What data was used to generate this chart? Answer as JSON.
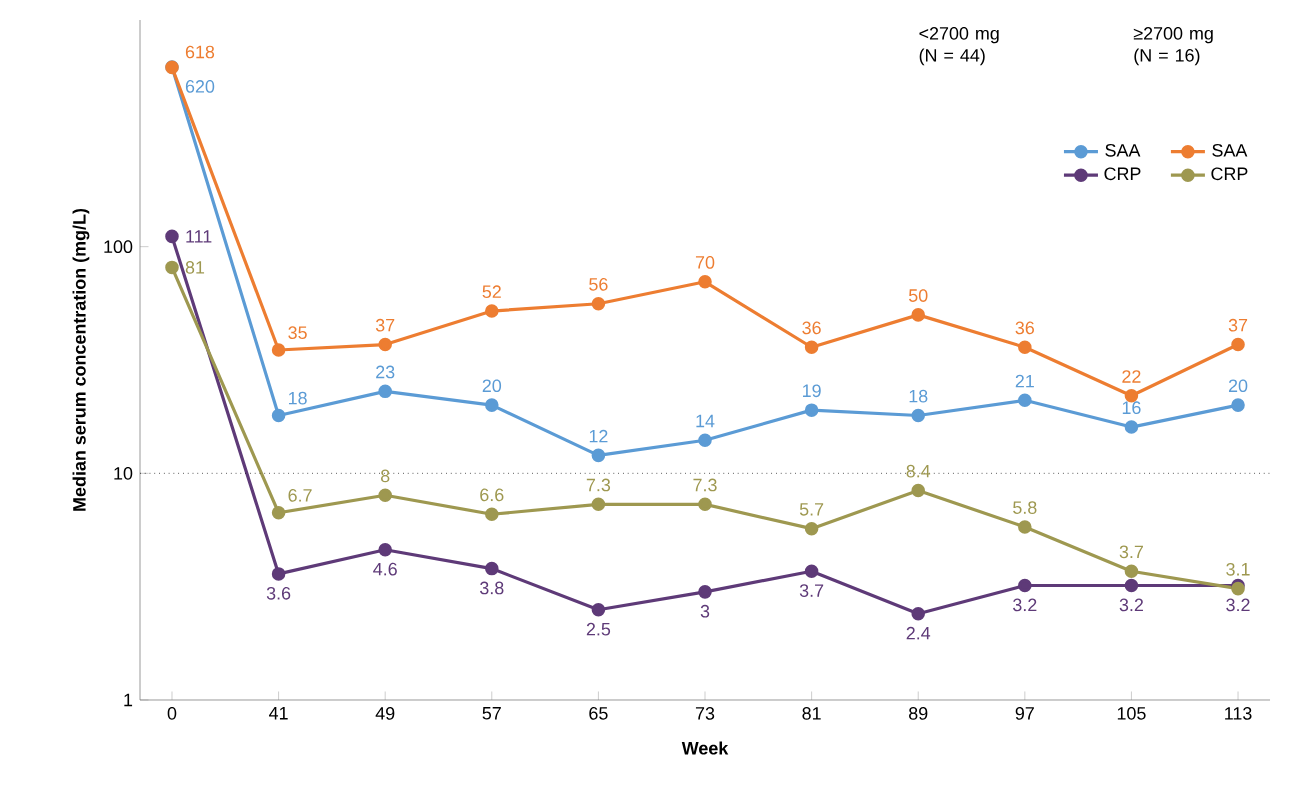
{
  "chart_data": {
    "type": "line",
    "xlabel": "Week",
    "ylabel": "Median serum concentration (mg/L)",
    "categories": [
      "0",
      "41",
      "49",
      "57",
      "65",
      "73",
      "81",
      "89",
      "97",
      "105",
      "113"
    ],
    "series": [
      {
        "name": "SAA",
        "color": "#5b9bd5",
        "values": [
          620,
          18,
          23,
          20,
          12,
          14,
          19,
          18,
          21,
          16,
          20
        ]
      },
      {
        "name": "SAA",
        "color": "#ed7d31",
        "values": [
          618,
          35,
          37,
          52,
          56,
          70,
          36,
          50,
          36,
          22,
          37
        ]
      },
      {
        "name": "CRP",
        "color": "#5e3a78",
        "values": [
          111,
          3.6,
          4.6,
          3.8,
          2.5,
          3,
          3.7,
          2.4,
          3.2,
          3.2,
          3.2
        ]
      },
      {
        "name": "CRP",
        "color": "#9e9850",
        "values": [
          81,
          6.7,
          8,
          6.6,
          7.3,
          7.3,
          5.7,
          8.4,
          5.8,
          3.7,
          3.1
        ]
      }
    ],
    "annotations": [
      "<2700 mg (N = 44)",
      "≥2700 mg (N = 16)"
    ],
    "log": "y",
    "ylim": [
      1,
      1000
    ],
    "yticks": [
      1,
      10,
      100
    ],
    "ref_lines": [
      {
        "axis": "y",
        "value": 10,
        "line_style": "dotted",
        "color": "#000000"
      }
    ],
    "data_labels": true,
    "legend": "top right",
    "marker": "circle",
    "line_style": "solid",
    "grid": false
  }
}
